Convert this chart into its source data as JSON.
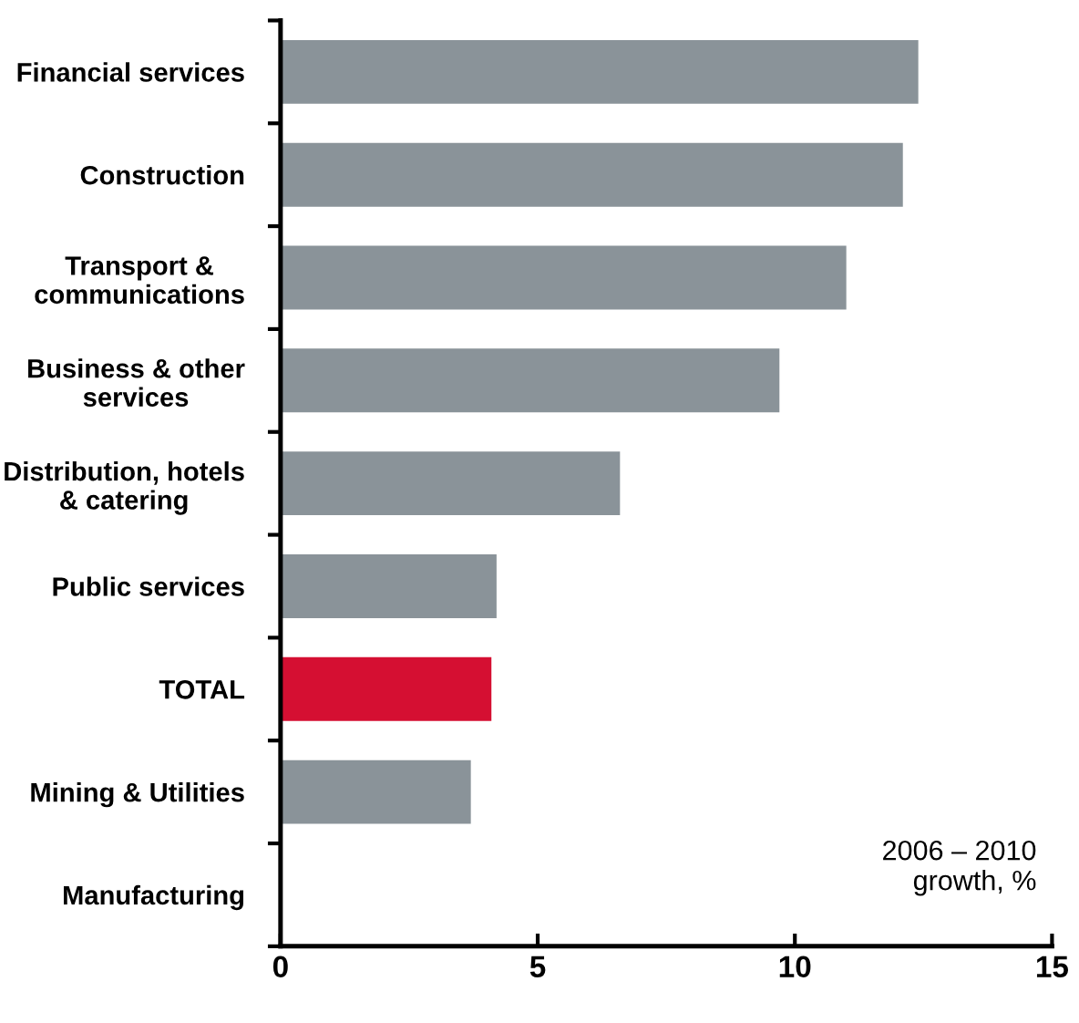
{
  "chart_data": {
    "type": "bar",
    "orientation": "horizontal",
    "categories": [
      "Financial services",
      "Construction",
      "Transport &\ncommunications",
      "Business & other\nservices",
      "Distribution, hotels\n& catering",
      "Public services",
      "TOTAL",
      "Mining & Utilities",
      "Manufacturing"
    ],
    "values": [
      12.4,
      12.1,
      11.0,
      9.7,
      6.6,
      4.2,
      4.1,
      3.7,
      0
    ],
    "colors": [
      "#8a9399",
      "#8a9399",
      "#8a9399",
      "#8a9399",
      "#8a9399",
      "#8a9399",
      "#d50f32",
      "#8a9399",
      "#8a9399"
    ],
    "xlim": [
      0,
      15
    ],
    "xticks": [
      0,
      5,
      10,
      15
    ],
    "annotations": [
      "2006 – 2010\ngrowth, %"
    ]
  }
}
